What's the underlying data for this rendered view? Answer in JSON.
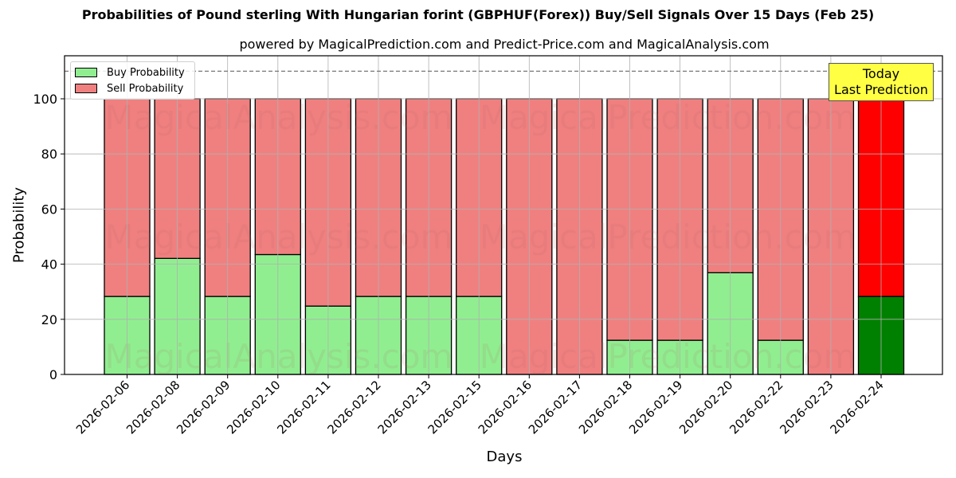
{
  "chart_data": {
    "type": "bar",
    "stacked": true,
    "title": "Probabilities of Pound sterling With Hungarian forint (GBPHUF(Forex)) Buy/Sell Signals Over 15 Days (Feb 25)",
    "subtitle": "powered by MagicalPrediction.com and Predict-Price.com and MagicalAnalysis.com",
    "xlabel": "Days",
    "ylabel": "Probability",
    "ylim": [
      0,
      115
    ],
    "yticks": [
      0,
      20,
      40,
      60,
      80,
      100
    ],
    "grid": true,
    "legend_position": "upper left",
    "reference_line": {
      "y": 110,
      "style": "dashed"
    },
    "categories": [
      "2026-02-06",
      "2026-02-08",
      "2026-02-09",
      "2026-02-10",
      "2026-02-11",
      "2026-02-12",
      "2026-02-13",
      "2026-02-15",
      "2026-02-16",
      "2026-02-17",
      "2026-02-18",
      "2026-02-19",
      "2026-02-20",
      "2026-02-22",
      "2026-02-23",
      "2026-02-24"
    ],
    "series": [
      {
        "name": "Buy Probability",
        "color": "#90ee90",
        "values": [
          28.3,
          42.1,
          28.3,
          43.5,
          24.8,
          28.3,
          28.3,
          28.3,
          0,
          0,
          12.4,
          12.4,
          36.9,
          12.4,
          0,
          28.3
        ]
      },
      {
        "name": "Sell Probability",
        "color": "#f08080",
        "values": [
          71.7,
          57.9,
          71.7,
          56.5,
          75.2,
          71.7,
          71.7,
          71.7,
          100,
          100,
          87.6,
          87.6,
          63.1,
          87.6,
          100,
          71.7
        ]
      }
    ],
    "highlight": {
      "index": 15,
      "buy_color": "#008000",
      "sell_color": "#ff0000",
      "annotation": "Today\nLast Prediction"
    },
    "watermarks": [
      "MagicalAnalysis.com",
      "MagicalPrediction.com"
    ]
  },
  "legend": {
    "buy_label": "Buy Probability",
    "sell_label": "Sell Probability"
  },
  "annotation": {
    "line1": "Today",
    "line2": "Last Prediction"
  }
}
